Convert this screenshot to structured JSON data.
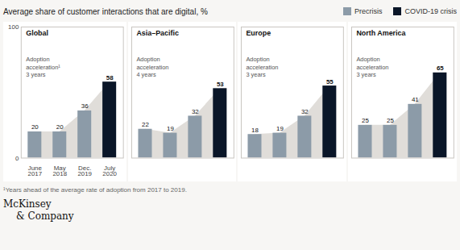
{
  "title": "Average share of customer interactions that are digital, %",
  "annotations": [
    "¹Years ahead of the average rate of adoption from 2017 to 2019.",
    "McKinsey\n& Company"
  ],
  "chart_data": [
    {
      "type": "bar",
      "title": "Global",
      "annotations": [
        "Adoption\nacceleration¹\n3 years"
      ],
      "categories": [
        "June\n2017",
        "May\n2018",
        "Dec.\n2019",
        "July\n2020"
      ],
      "series": [
        {
          "name": "Precrisis",
          "color": "#8c9ba8",
          "values": [
            20,
            20,
            36,
            null
          ]
        },
        {
          "name": "COVID-19 crisis",
          "color": "#0a1628",
          "values": [
            null,
            null,
            null,
            58
          ]
        }
      ],
      "ylim": [
        0,
        100
      ],
      "yticks": [
        0,
        100
      ],
      "data_labels": true
    },
    {
      "type": "bar",
      "title": "Asia–Pacific",
      "annotations": [
        "Adoption\nacceleration\n4 years"
      ],
      "categories": [
        "June\n2017",
        "May\n2018",
        "Dec.\n2019",
        "July\n2020"
      ],
      "series": [
        {
          "name": "Precrisis",
          "color": "#8c9ba8",
          "values": [
            22,
            19,
            32,
            null
          ]
        },
        {
          "name": "COVID-19 crisis",
          "color": "#0a1628",
          "values": [
            null,
            null,
            null,
            53
          ]
        }
      ],
      "ylim": [
        0,
        100
      ],
      "yticks": [
        0,
        100
      ],
      "data_labels": true,
      "tick_labels": false
    },
    {
      "type": "bar",
      "title": "Europe",
      "annotations": [
        "Adoption\nacceleration\n3 years"
      ],
      "categories": [
        "June\n2017",
        "May\n2018",
        "Dec.\n2019",
        "July\n2020"
      ],
      "series": [
        {
          "name": "Precrisis",
          "color": "#8c9ba8",
          "values": [
            18,
            19,
            32,
            null
          ]
        },
        {
          "name": "COVID-19 crisis",
          "color": "#0a1628",
          "values": [
            null,
            null,
            null,
            55
          ]
        }
      ],
      "ylim": [
        0,
        100
      ],
      "yticks": [
        0,
        100
      ],
      "data_labels": true,
      "tick_labels": false
    },
    {
      "type": "bar",
      "title": "North America",
      "annotations": [
        "Adoption\nacceleration\n3 years"
      ],
      "categories": [
        "June\n2017",
        "May\n2018",
        "Dec.\n2019",
        "July\n2020"
      ],
      "series": [
        {
          "name": "Precrisis",
          "color": "#8c9ba8",
          "values": [
            25,
            25,
            41,
            null
          ]
        },
        {
          "name": "COVID-19 crisis",
          "color": "#0a1628",
          "values": [
            null,
            null,
            null,
            65
          ]
        }
      ],
      "ylim": [
        0,
        100
      ],
      "yticks": [
        0,
        100
      ],
      "data_labels": true,
      "tick_labels": false
    }
  ]
}
